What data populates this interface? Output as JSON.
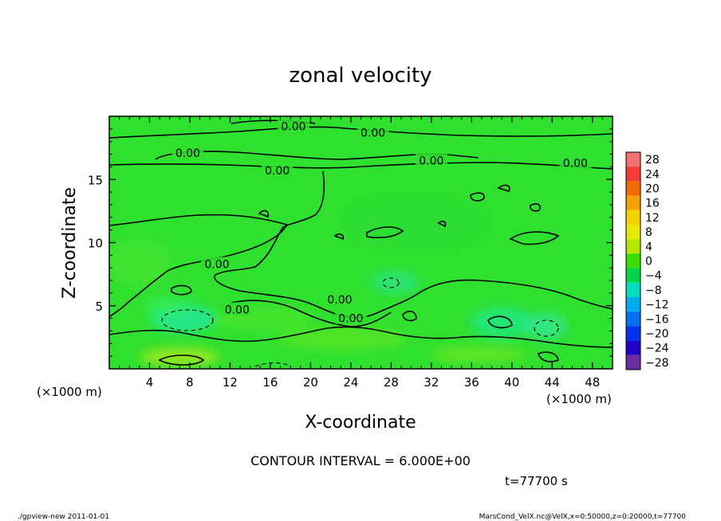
{
  "chart_data": {
    "type": "heatmap",
    "title": "zonal velocity",
    "xlabel": "X-coordinate",
    "ylabel": "Z-coordinate",
    "x_unit_label": "(×1000 m)",
    "x_unit_label_bottom": "(×1000 m)",
    "xlim": [
      0,
      50
    ],
    "ylim": [
      0,
      20
    ],
    "x_ticks": [
      4,
      8,
      12,
      16,
      20,
      24,
      28,
      32,
      36,
      40,
      44,
      48
    ],
    "y_ticks": [
      5,
      10,
      15
    ],
    "grid": false,
    "colorbar_levels": [
      28,
      24,
      20,
      16,
      12,
      8,
      4,
      0,
      -4,
      -8,
      -12,
      -16,
      -20,
      -24,
      -28
    ],
    "colorbar_colors": [
      "#f47070",
      "#f53a3a",
      "#f26a00",
      "#f7a000",
      "#f5d200",
      "#e6ea00",
      "#b4e600",
      "#3cdc00",
      "#00d24a",
      "#00dcc0",
      "#00aaf0",
      "#0070f0",
      "#0032f0",
      "#2000c8",
      "#6a2aa0"
    ],
    "contour_labels": [
      {
        "text": "0.00",
        "x": 18.3,
        "z": 19.2
      },
      {
        "text": "0.00",
        "x": 26.2,
        "z": 18.7
      },
      {
        "text": "0.00",
        "x": 7.8,
        "z": 17.1
      },
      {
        "text": "0.00",
        "x": 32.0,
        "z": 16.5
      },
      {
        "text": "0.00",
        "x": 46.3,
        "z": 16.3
      },
      {
        "text": "0.00",
        "x": 16.7,
        "z": 15.7
      },
      {
        "text": "0.00",
        "x": 10.7,
        "z": 8.3
      },
      {
        "text": "0.00",
        "x": 12.7,
        "z": 4.7
      },
      {
        "text": "0.00",
        "x": 22.9,
        "z": 5.5
      },
      {
        "text": "0.00",
        "x": 24.0,
        "z": 4.0
      }
    ],
    "contour_interval": "CONTOUR INTERVAL = 6.000E+00",
    "time_label": "t=77700 s"
  },
  "footer": {
    "left": "./gpview-new  2011-01-01",
    "right": "MarsCond_VelX.nc@VelX,x=0:50000,z=0:20000,t=77700"
  },
  "colors": {
    "field": "#2fe02f",
    "frame": "#000000"
  }
}
